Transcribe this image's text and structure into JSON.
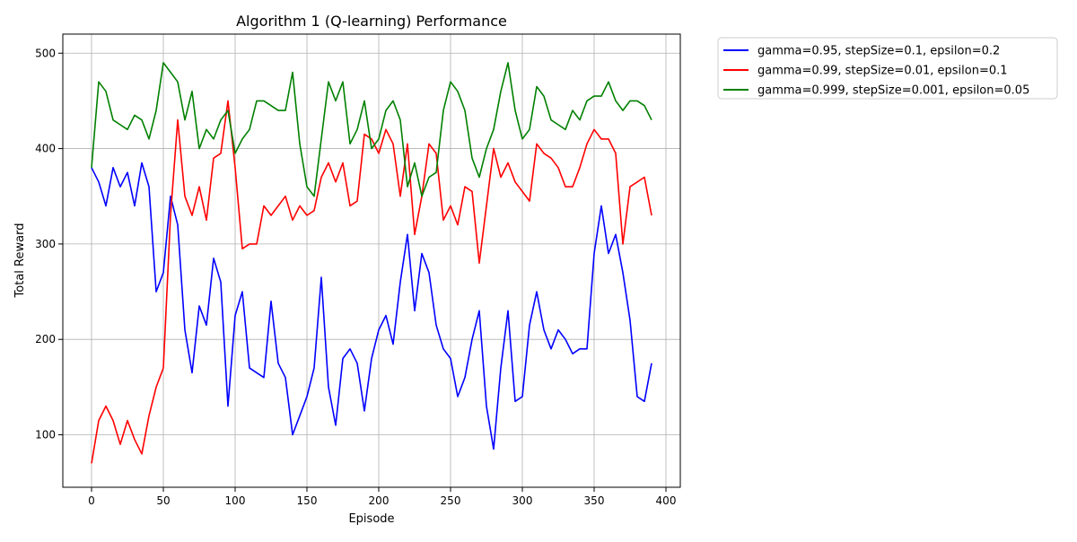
{
  "chart_data": {
    "type": "line",
    "title": "Algorithm 1 (Q-learning) Performance",
    "xlabel": "Episode",
    "ylabel": "Total Reward",
    "xlim": [
      -20,
      410
    ],
    "ylim": [
      45,
      520
    ],
    "xticks": [
      0,
      50,
      100,
      150,
      200,
      250,
      300,
      350,
      400
    ],
    "yticks": [
      100,
      200,
      300,
      400,
      500
    ],
    "grid": true,
    "legend_position": "outside-upper-right",
    "series": [
      {
        "name": "gamma=0.95, stepSize=0.1, epsilon=0.2",
        "color": "#0000ff",
        "x": [
          0,
          5,
          10,
          15,
          20,
          25,
          30,
          35,
          40,
          45,
          50,
          55,
          60,
          65,
          70,
          75,
          80,
          85,
          90,
          95,
          100,
          105,
          110,
          115,
          120,
          125,
          130,
          135,
          140,
          145,
          150,
          155,
          160,
          165,
          170,
          175,
          180,
          185,
          190,
          195,
          200,
          205,
          210,
          215,
          220,
          225,
          230,
          235,
          240,
          245,
          250,
          255,
          260,
          265,
          270,
          275,
          280,
          285,
          290,
          295,
          300,
          305,
          310,
          315,
          320,
          325,
          330,
          335,
          340,
          345,
          350,
          355,
          360,
          365,
          370,
          375,
          380,
          385,
          390
        ],
        "y": [
          380,
          365,
          340,
          380,
          360,
          375,
          340,
          385,
          360,
          250,
          270,
          350,
          320,
          210,
          165,
          235,
          215,
          285,
          260,
          130,
          225,
          250,
          170,
          165,
          160,
          240,
          175,
          160,
          100,
          120,
          140,
          170,
          265,
          150,
          110,
          180,
          190,
          175,
          125,
          180,
          210,
          225,
          195,
          260,
          310,
          230,
          290,
          270,
          215,
          190,
          180,
          140,
          160,
          200,
          230,
          130,
          85,
          170,
          230,
          135,
          140,
          215,
          250,
          210,
          190,
          210,
          200,
          185,
          190,
          190,
          290,
          340,
          290,
          310,
          270,
          220,
          140,
          135,
          175
        ]
      },
      {
        "name": "gamma=0.99, stepSize=0.01, epsilon=0.1",
        "color": "#ff0000",
        "x": [
          0,
          5,
          10,
          15,
          20,
          25,
          30,
          35,
          40,
          45,
          50,
          55,
          60,
          65,
          70,
          75,
          80,
          85,
          90,
          95,
          100,
          105,
          110,
          115,
          120,
          125,
          130,
          135,
          140,
          145,
          150,
          155,
          160,
          165,
          170,
          175,
          180,
          185,
          190,
          195,
          200,
          205,
          210,
          215,
          220,
          225,
          230,
          235,
          240,
          245,
          250,
          255,
          260,
          265,
          270,
          275,
          280,
          285,
          290,
          295,
          300,
          305,
          310,
          315,
          320,
          325,
          330,
          335,
          340,
          345,
          350,
          355,
          360,
          365,
          370,
          375,
          380,
          385,
          390
        ],
        "y": [
          70,
          115,
          130,
          115,
          90,
          115,
          95,
          80,
          120,
          150,
          170,
          330,
          430,
          350,
          330,
          360,
          325,
          390,
          395,
          450,
          380,
          295,
          300,
          300,
          340,
          330,
          340,
          350,
          325,
          340,
          330,
          335,
          370,
          385,
          365,
          385,
          340,
          345,
          415,
          410,
          395,
          420,
          405,
          350,
          405,
          310,
          350,
          405,
          395,
          325,
          340,
          320,
          360,
          355,
          280,
          340,
          400,
          370,
          385,
          365,
          355,
          345,
          405,
          395,
          390,
          380,
          360,
          360,
          380,
          405,
          420,
          410,
          410,
          395,
          300,
          360,
          365,
          370,
          330
        ]
      },
      {
        "name": "gamma=0.999, stepSize=0.001, epsilon=0.05",
        "color": "#008000",
        "x": [
          0,
          5,
          10,
          15,
          20,
          25,
          30,
          35,
          40,
          45,
          50,
          55,
          60,
          65,
          70,
          75,
          80,
          85,
          90,
          95,
          100,
          105,
          110,
          115,
          120,
          125,
          130,
          135,
          140,
          145,
          150,
          155,
          160,
          165,
          170,
          175,
          180,
          185,
          190,
          195,
          200,
          205,
          210,
          215,
          220,
          225,
          230,
          235,
          240,
          245,
          250,
          255,
          260,
          265,
          270,
          275,
          280,
          285,
          290,
          295,
          300,
          305,
          310,
          315,
          320,
          325,
          330,
          335,
          340,
          345,
          350,
          355,
          360,
          365,
          370,
          375,
          380,
          385,
          390
        ],
        "y": [
          380,
          470,
          460,
          430,
          425,
          420,
          435,
          430,
          410,
          440,
          490,
          480,
          470,
          430,
          460,
          400,
          420,
          410,
          430,
          440,
          395,
          410,
          420,
          450,
          450,
          445,
          440,
          440,
          480,
          405,
          360,
          350,
          410,
          470,
          450,
          470,
          405,
          420,
          450,
          400,
          410,
          440,
          450,
          430,
          360,
          385,
          350,
          370,
          375,
          440,
          470,
          460,
          440,
          390,
          370,
          400,
          420,
          460,
          490,
          440,
          410,
          420,
          465,
          455,
          430,
          425,
          420,
          440,
          430,
          450,
          455,
          455,
          470,
          450,
          440,
          450,
          450,
          445,
          430
        ]
      }
    ]
  }
}
